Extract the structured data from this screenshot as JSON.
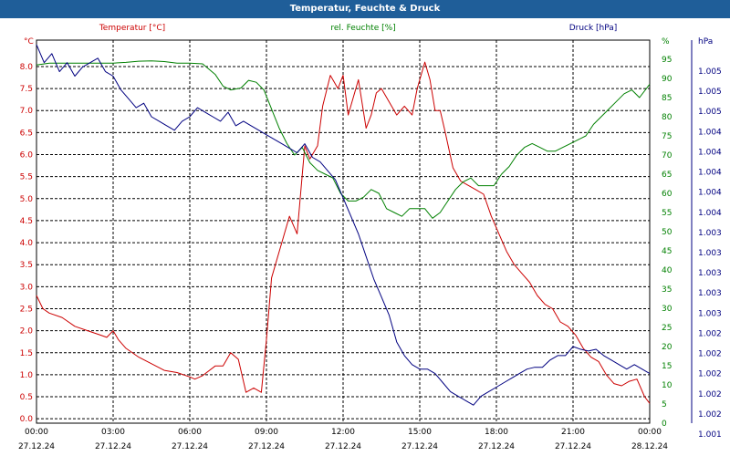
{
  "title": "Temperatur, Feuchte & Druck",
  "chart_data": {
    "type": "line",
    "title": "Temperatur, Feuchte & Druck",
    "x_start_hour": 0,
    "x_end_hour": 24,
    "x_ticks": [
      {
        "hour": 0,
        "time": "00:00",
        "date": "27.12.24"
      },
      {
        "hour": 3,
        "time": "03:00",
        "date": "27.12.24"
      },
      {
        "hour": 6,
        "time": "06:00",
        "date": "27.12.24"
      },
      {
        "hour": 9,
        "time": "09:00",
        "date": "27.12.24"
      },
      {
        "hour": 12,
        "time": "12:00",
        "date": "27.12.24"
      },
      {
        "hour": 15,
        "time": "15:00",
        "date": "27.12.24"
      },
      {
        "hour": 18,
        "time": "18:00",
        "date": "27.12.24"
      },
      {
        "hour": 21,
        "time": "21:00",
        "date": "27.12.24"
      },
      {
        "hour": 24,
        "time": "00:00",
        "date": "28.12.24"
      }
    ],
    "axes": {
      "left": {
        "label": "Temperatur [°C]",
        "unit": "°C",
        "min": -0.1,
        "max": 8.6,
        "color": "#cc0000",
        "ticks": [
          "0.0",
          "0.5",
          "1.0",
          "1.5",
          "2.0",
          "2.5",
          "3.0",
          "3.5",
          "4.0",
          "4.5",
          "5.0",
          "5.5",
          "6.0",
          "6.5",
          "7.0",
          "7.5",
          "8.0"
        ]
      },
      "mid": {
        "label": "rel. Feuchte [%]",
        "unit": "%",
        "min": 0,
        "max": 100,
        "color": "#008000",
        "ticks": [
          "0",
          "5",
          "10",
          "15",
          "20",
          "25",
          "30",
          "35",
          "40",
          "45",
          "50",
          "55",
          "60",
          "65",
          "70",
          "75",
          "80",
          "85",
          "90",
          "95"
        ]
      },
      "right": {
        "label": "Druck [hPa]",
        "unit": "hPa",
        "min": 1001,
        "max": 1005.25,
        "color": "#000080",
        "ticks": [
          "1.001",
          "1.002",
          "1.002",
          "1.002",
          "1.002",
          "1.002",
          "1.003",
          "1.003",
          "1.003",
          "1.003",
          "1.003",
          "1.004",
          "1.004",
          "1.004",
          "1.004",
          "1.004",
          "1.005",
          "1.005",
          "1.005"
        ]
      }
    },
    "grid": true,
    "legend": "top",
    "series": [
      {
        "name": "Temperatur [°C]",
        "axis": "left",
        "color": "#cc0000",
        "hours": [
          0.0,
          0.25,
          0.5,
          1.0,
          1.5,
          2.0,
          2.5,
          2.75,
          3.0,
          3.2,
          3.5,
          4.0,
          4.5,
          5.0,
          5.5,
          6.0,
          6.2,
          6.5,
          7.0,
          7.3,
          7.6,
          7.9,
          8.2,
          8.5,
          8.8,
          9.0,
          9.2,
          9.6,
          9.9,
          10.2,
          10.5,
          10.7,
          11.0,
          11.2,
          11.5,
          11.8,
          12.0,
          12.2,
          12.6,
          12.9,
          13.1,
          13.3,
          13.5,
          13.8,
          14.1,
          14.4,
          14.7,
          14.9,
          15.2,
          15.4,
          15.6,
          15.8,
          16.0,
          16.3,
          16.6,
          16.9,
          17.2,
          17.5,
          17.8,
          18.1,
          18.4,
          18.7,
          19.0,
          19.3,
          19.6,
          19.9,
          20.2,
          20.5,
          20.8,
          21.1,
          21.4,
          21.7,
          22.0,
          22.3,
          22.6,
          22.9,
          23.2,
          23.5,
          23.8,
          24.0
        ],
        "values": [
          2.8,
          2.5,
          2.4,
          2.3,
          2.1,
          2.0,
          1.9,
          1.85,
          2.0,
          1.8,
          1.6,
          1.4,
          1.25,
          1.1,
          1.05,
          0.95,
          0.9,
          0.98,
          1.2,
          1.2,
          1.5,
          1.35,
          0.6,
          0.7,
          0.6,
          1.8,
          3.2,
          4.0,
          4.6,
          4.2,
          6.2,
          5.9,
          6.2,
          7.1,
          7.8,
          7.5,
          7.8,
          6.9,
          7.7,
          6.6,
          6.9,
          7.4,
          7.5,
          7.2,
          6.9,
          7.1,
          6.9,
          7.5,
          8.1,
          7.7,
          7.0,
          7.0,
          6.5,
          5.7,
          5.4,
          5.3,
          5.2,
          5.1,
          4.6,
          4.2,
          3.8,
          3.5,
          3.3,
          3.1,
          2.8,
          2.6,
          2.5,
          2.2,
          2.1,
          1.9,
          1.6,
          1.4,
          1.3,
          1.0,
          0.8,
          0.75,
          0.85,
          0.9,
          0.5,
          0.35
        ]
      },
      {
        "name": "rel. Feuchte [%]",
        "axis": "mid",
        "color": "#008000",
        "hours": [
          0.0,
          0.5,
          1.0,
          1.5,
          2.0,
          2.5,
          3.0,
          3.5,
          4.0,
          4.5,
          5.0,
          5.5,
          6.0,
          6.5,
          7.0,
          7.3,
          7.6,
          8.0,
          8.3,
          8.6,
          8.9,
          9.2,
          9.5,
          9.8,
          10.1,
          10.4,
          10.7,
          11.0,
          11.3,
          11.6,
          11.9,
          12.2,
          12.5,
          12.8,
          13.1,
          13.4,
          13.7,
          14.0,
          14.3,
          14.6,
          14.9,
          15.2,
          15.5,
          15.8,
          16.1,
          16.4,
          16.7,
          17.0,
          17.3,
          17.6,
          17.9,
          18.2,
          18.5,
          18.8,
          19.1,
          19.4,
          19.7,
          20.0,
          20.3,
          20.6,
          20.9,
          21.2,
          21.5,
          21.8,
          22.1,
          22.4,
          22.7,
          23.0,
          23.3,
          23.6,
          24.0
        ],
        "values": [
          93.5,
          94.0,
          94.0,
          94.0,
          94.0,
          94.0,
          94.0,
          94.2,
          94.5,
          94.6,
          94.4,
          94.0,
          94.0,
          93.8,
          91.0,
          88.0,
          87.0,
          87.5,
          89.5,
          89.0,
          87.0,
          82.0,
          77.0,
          73.0,
          70.0,
          72.0,
          68.0,
          66.0,
          65.0,
          64.0,
          60.0,
          58.0,
          58.0,
          59.0,
          61.0,
          60.0,
          56.0,
          55.0,
          54.0,
          56.0,
          56.0,
          56.0,
          53.5,
          55.0,
          58.0,
          61.0,
          63.0,
          64.0,
          62.0,
          62.0,
          62.0,
          65.0,
          67.0,
          70.0,
          72.0,
          73.0,
          72.0,
          71.0,
          71.0,
          72.0,
          73.0,
          74.0,
          75.0,
          78.0,
          80.0,
          82.0,
          84.0,
          86.0,
          87.0,
          85.0,
          88.5
        ]
      },
      {
        "name": "Druck [hPa]",
        "axis": "right",
        "color": "#000080",
        "hours": [
          0.0,
          0.3,
          0.6,
          0.9,
          1.2,
          1.5,
          1.8,
          2.1,
          2.4,
          2.7,
          3.0,
          3.3,
          3.6,
          3.9,
          4.2,
          4.5,
          4.8,
          5.1,
          5.4,
          5.7,
          6.0,
          6.3,
          6.6,
          6.9,
          7.2,
          7.5,
          7.8,
          8.1,
          8.4,
          8.7,
          9.0,
          9.3,
          9.6,
          9.9,
          10.2,
          10.5,
          10.8,
          11.1,
          11.4,
          11.7,
          12.0,
          12.3,
          12.6,
          12.9,
          13.2,
          13.5,
          13.8,
          14.1,
          14.4,
          14.7,
          15.0,
          15.3,
          15.6,
          15.9,
          16.2,
          16.5,
          16.8,
          17.1,
          17.4,
          17.7,
          18.0,
          18.3,
          18.6,
          18.9,
          19.2,
          19.5,
          19.8,
          20.1,
          20.4,
          20.7,
          21.0,
          21.3,
          21.6,
          21.9,
          22.2,
          22.5,
          22.8,
          23.1,
          23.4,
          23.7,
          24.0
        ],
        "values": [
          1005.2,
          1005.0,
          1005.1,
          1004.9,
          1005.0,
          1004.85,
          1004.95,
          1005.0,
          1005.05,
          1004.9,
          1004.85,
          1004.7,
          1004.6,
          1004.5,
          1004.55,
          1004.4,
          1004.35,
          1004.3,
          1004.25,
          1004.35,
          1004.4,
          1004.5,
          1004.45,
          1004.4,
          1004.35,
          1004.45,
          1004.3,
          1004.35,
          1004.3,
          1004.25,
          1004.2,
          1004.15,
          1004.1,
          1004.05,
          1004.0,
          1004.1,
          1003.95,
          1003.9,
          1003.8,
          1003.7,
          1003.5,
          1003.3,
          1003.1,
          1002.85,
          1002.6,
          1002.4,
          1002.2,
          1001.9,
          1001.75,
          1001.65,
          1001.6,
          1001.6,
          1001.55,
          1001.45,
          1001.35,
          1001.3,
          1001.25,
          1001.2,
          1001.3,
          1001.35,
          1001.4,
          1001.45,
          1001.5,
          1001.55,
          1001.6,
          1001.62,
          1001.62,
          1001.7,
          1001.75,
          1001.75,
          1001.85,
          1001.82,
          1001.8,
          1001.82,
          1001.75,
          1001.7,
          1001.65,
          1001.6,
          1001.65,
          1001.6,
          1001.55
        ]
      }
    ]
  }
}
